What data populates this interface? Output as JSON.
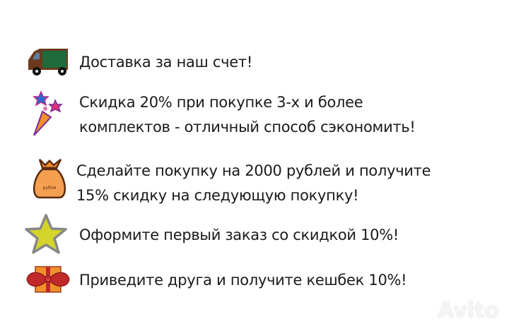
{
  "items": [
    {
      "icon": "delivery-truck-icon",
      "lines": [
        "Доставка за наш счет!"
      ]
    },
    {
      "icon": "fireworks-cone-icon",
      "lines": [
        "Скидка 20% при покупке 3-х и более",
        "комплектов - отличный способ сэкономить!"
      ]
    },
    {
      "icon": "money-bag-icon",
      "icon_label": "рубли",
      "lines": [
        "Сделайте покупку на 2000 рублей и получите",
        "15% скидку на следующую покупку!"
      ]
    },
    {
      "icon": "star-icon",
      "lines": [
        "Оформите первый заказ со скидкой 10%!"
      ]
    },
    {
      "icon": "gift-icon",
      "lines": [
        "Приведите друга и получите кешбек 10%!"
      ]
    }
  ],
  "watermark": "Avito",
  "colors": {
    "truck": "#6b3a1e",
    "truck_window": "#1f6b3a",
    "bag": "#f0892a",
    "star": "#d4d42a",
    "gift": "#f0902a",
    "bow": "#c0282a"
  }
}
